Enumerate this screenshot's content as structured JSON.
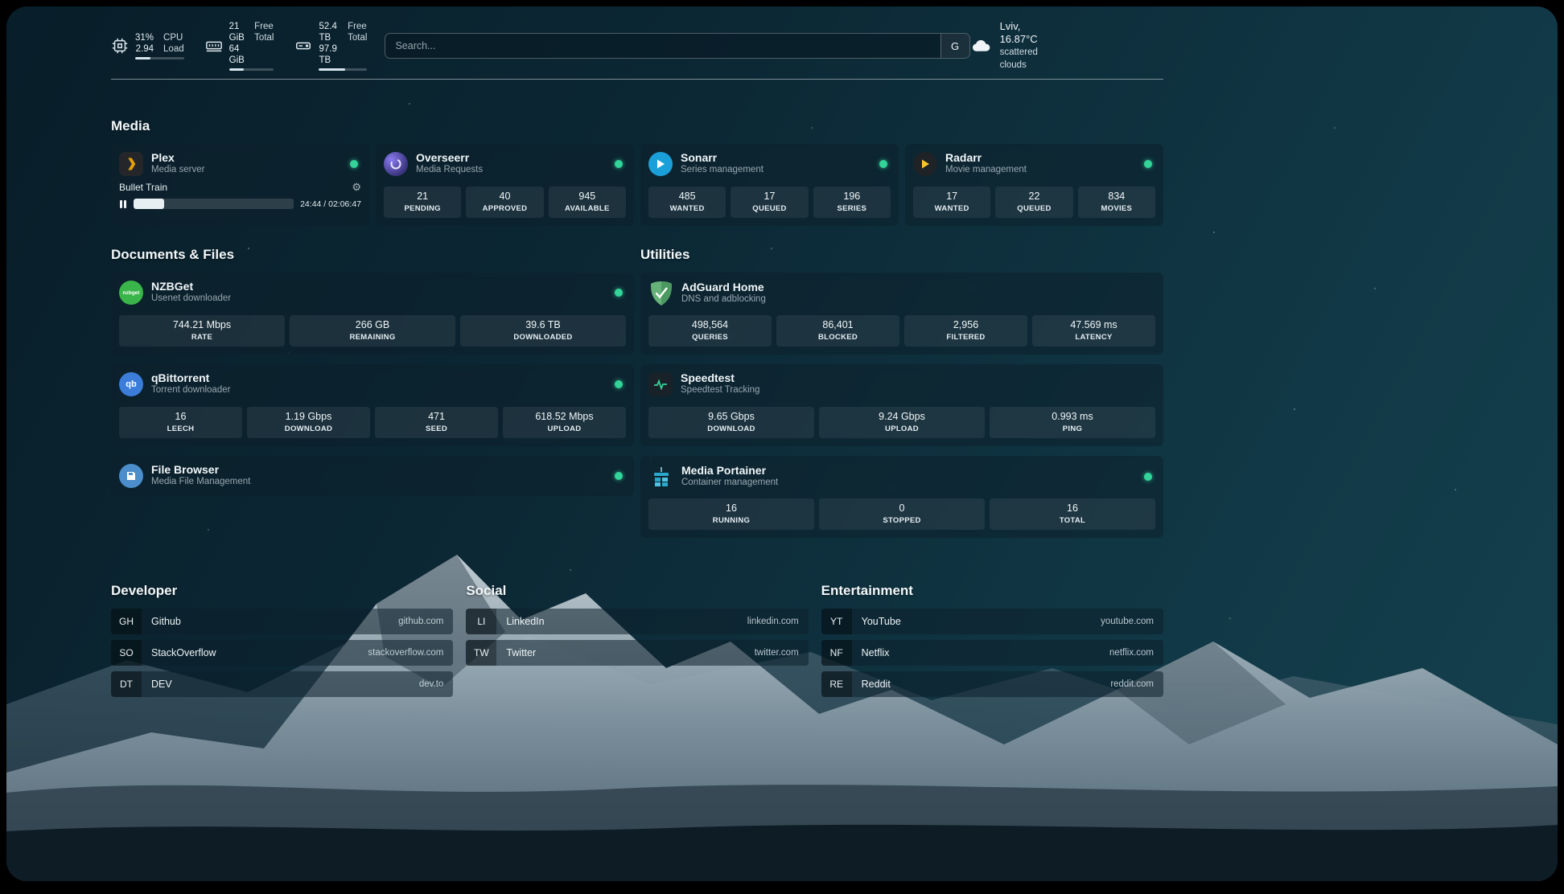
{
  "header": {
    "cpu": {
      "icon": "cpu-icon",
      "value1": "31%",
      "value2": "2.94",
      "label1": "CPU",
      "label2": "Load",
      "percent": 31
    },
    "memory": {
      "icon": "memory-icon",
      "value1": "21 GiB",
      "value2": "64 GiB",
      "label1": "Free",
      "label2": "Total",
      "percent": 33
    },
    "disk": {
      "icon": "disk-icon",
      "value1": "52.4 TB",
      "value2": "97.9 TB",
      "label1": "Free",
      "label2": "Total",
      "percent": 54
    },
    "search": {
      "placeholder": "Search...",
      "button": "G"
    },
    "weather": {
      "icon": "cloud-icon",
      "location": "Lviv, 16.87°C",
      "condition": "scattered clouds"
    }
  },
  "media": {
    "title": "Media",
    "cards": [
      {
        "name": "Plex",
        "description": "Media server",
        "icon": "plex-icon",
        "status": "online",
        "now_playing": {
          "title": "Bullet Train",
          "time": "24:44 / 02:06:47",
          "progress_percent": 19
        }
      },
      {
        "name": "Overseerr",
        "description": "Media Requests",
        "icon": "overseerr-icon",
        "status": "online",
        "stats": [
          {
            "value": "21",
            "label": "PENDING"
          },
          {
            "value": "40",
            "label": "APPROVED"
          },
          {
            "value": "945",
            "label": "AVAILABLE"
          }
        ]
      },
      {
        "name": "Sonarr",
        "description": "Series management",
        "icon": "sonarr-icon",
        "status": "online",
        "stats": [
          {
            "value": "485",
            "label": "WANTED"
          },
          {
            "value": "17",
            "label": "QUEUED"
          },
          {
            "value": "196",
            "label": "SERIES"
          }
        ]
      },
      {
        "name": "Radarr",
        "description": "Movie management",
        "icon": "radarr-icon",
        "status": "online",
        "stats": [
          {
            "value": "17",
            "label": "WANTED"
          },
          {
            "value": "22",
            "label": "QUEUED"
          },
          {
            "value": "834",
            "label": "MOVIES"
          }
        ]
      }
    ]
  },
  "documents": {
    "title": "Documents & Files",
    "cards": [
      {
        "name": "NZBGet",
        "description": "Usenet downloader",
        "icon": "nzbget-icon",
        "status": "online",
        "stats": [
          {
            "value": "744.21 Mbps",
            "label": "RATE"
          },
          {
            "value": "266 GB",
            "label": "REMAINING"
          },
          {
            "value": "39.6 TB",
            "label": "DOWNLOADED"
          }
        ]
      },
      {
        "name": "qBittorrent",
        "description": "Torrent downloader",
        "icon": "qbittorrent-icon",
        "status": "online",
        "stats": [
          {
            "value": "16",
            "label": "LEECH"
          },
          {
            "value": "1.19 Gbps",
            "label": "DOWNLOAD"
          },
          {
            "value": "471",
            "label": "SEED"
          },
          {
            "value": "618.52 Mbps",
            "label": "UPLOAD"
          }
        ]
      },
      {
        "name": "File Browser",
        "description": "Media File Management",
        "icon": "filebrowser-icon",
        "status": "online",
        "stats": []
      }
    ]
  },
  "utilities": {
    "title": "Utilities",
    "cards": [
      {
        "name": "AdGuard Home",
        "description": "DNS and adblocking",
        "icon": "adguard-icon",
        "stats": [
          {
            "value": "498,564",
            "label": "QUERIES"
          },
          {
            "value": "86,401",
            "label": "BLOCKED"
          },
          {
            "value": "2,956",
            "label": "FILTERED"
          },
          {
            "value": "47.569 ms",
            "label": "LATENCY"
          }
        ]
      },
      {
        "name": "Speedtest",
        "description": "Speedtest Tracking",
        "icon": "speedtest-icon",
        "stats": [
          {
            "value": "9.65 Gbps",
            "label": "DOWNLOAD"
          },
          {
            "value": "9.24 Gbps",
            "label": "UPLOAD"
          },
          {
            "value": "0.993 ms",
            "label": "PING"
          }
        ]
      },
      {
        "name": "Media Portainer",
        "description": "Container management",
        "icon": "portainer-icon",
        "status": "online",
        "stats": [
          {
            "value": "16",
            "label": "RUNNING"
          },
          {
            "value": "0",
            "label": "STOPPED"
          },
          {
            "value": "16",
            "label": "TOTAL"
          }
        ]
      }
    ]
  },
  "bookmarks": [
    {
      "title": "Developer",
      "items": [
        {
          "abbr": "GH",
          "name": "Github",
          "url": "github.com"
        },
        {
          "abbr": "SO",
          "name": "StackOverflow",
          "url": "stackoverflow.com"
        },
        {
          "abbr": "DT",
          "name": "DEV",
          "url": "dev.to"
        }
      ]
    },
    {
      "title": "Social",
      "items": [
        {
          "abbr": "LI",
          "name": "LinkedIn",
          "url": "linkedin.com"
        },
        {
          "abbr": "TW",
          "name": "Twitter",
          "url": "twitter.com"
        }
      ]
    },
    {
      "title": "Entertainment",
      "items": [
        {
          "abbr": "YT",
          "name": "YouTube",
          "url": "youtube.com"
        },
        {
          "abbr": "NF",
          "name": "Netflix",
          "url": "netflix.com"
        },
        {
          "abbr": "RE",
          "name": "Reddit",
          "url": "reddit.com"
        }
      ]
    }
  ],
  "colors": {
    "status_online": "#34d399",
    "plex_amber": "#e5a00d",
    "sonarr_blue": "#35c5f4",
    "radarr_gold": "#ffc230",
    "nzbget_green": "#3ab54a",
    "qbittorrent_blue": "#3b7dd8",
    "adguard_green": "#67b279"
  }
}
